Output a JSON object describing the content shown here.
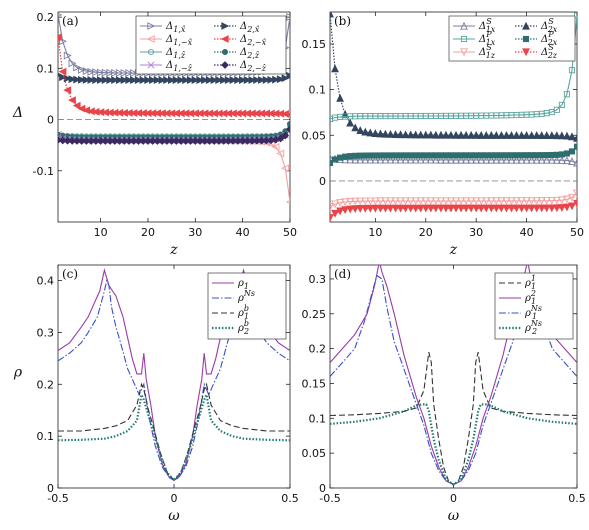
{
  "figure": {
    "colors": {
      "delta1_xhat": "#7b7fa0",
      "delta2_xhat": "#33455e",
      "delta1_zhat": "#5aa5a0",
      "delta2_zhat": "#2f6e6e",
      "delta1_mxhat": "#f2a0a0",
      "delta2_mxhat": "#e8444a",
      "delta1_mzhat": "#b07fd0",
      "delta2_mzhat": "#3a2a5e",
      "rho_main": "#9b3aa8",
      "rho_ns": "#3850c8",
      "rho_dash": "#333333",
      "rho_dot": "#1f7a74"
    }
  },
  "chart_data": [
    {
      "type": "line",
      "panel_label": "(a)",
      "xlabel": "z",
      "ylabel": "Δ",
      "xlim": [
        1,
        50
      ],
      "ylim": [
        -0.2,
        0.21
      ],
      "xticks": [
        10,
        20,
        30,
        40,
        50
      ],
      "yticks": [
        -0.1,
        0,
        0.1,
        0.2
      ],
      "ytick_labels": [
        "-0.1",
        "0",
        "0.1",
        "0.2"
      ],
      "legend_position": "top-right",
      "series": [
        {
          "name": "Δ1,x̂",
          "marker": "tri-right",
          "dash": "solid",
          "color_key": "delta1_xhat",
          "bulk": 0.09,
          "left_end": 0.2,
          "right_end": 0.195
        },
        {
          "name": "Δ2,x̂",
          "marker": "tri-right-filled",
          "dash": "dotted",
          "color_key": "delta2_xhat",
          "bulk": 0.077,
          "left_end": 0.087,
          "right_end": 0.085
        },
        {
          "name": "Δ1,−x̂",
          "marker": "tri-left",
          "dash": "solid",
          "color_key": "delta1_mxhat",
          "bulk": -0.04,
          "left_end": -0.03,
          "right_end": -0.155
        },
        {
          "name": "Δ2,−x̂",
          "marker": "tri-left-filled",
          "dash": "dotted",
          "color_key": "delta2_mxhat",
          "bulk": 0.012,
          "left_end": 0.155,
          "right_end": 0.01
        },
        {
          "name": "Δ1,ẑ",
          "marker": "circle",
          "dash": "solid",
          "color_key": "delta1_zhat",
          "bulk": -0.033,
          "left_end": -0.03,
          "right_end": -0.02
        },
        {
          "name": "Δ2,ẑ",
          "marker": "circle-filled",
          "dash": "dotted",
          "color_key": "delta2_zhat",
          "bulk": -0.035,
          "left_end": -0.03,
          "right_end": -0.01
        },
        {
          "name": "Δ1,−ẑ",
          "marker": "x",
          "dash": "solid",
          "color_key": "delta1_mzhat",
          "bulk": -0.04,
          "left_end": -0.035,
          "right_end": -0.02
        },
        {
          "name": "Δ2,−ẑ",
          "marker": "diamond-filled",
          "dash": "dotted",
          "color_key": "delta2_mzhat",
          "bulk": -0.042,
          "left_end": -0.04,
          "right_end": -0.02
        }
      ]
    },
    {
      "type": "line",
      "panel_label": "(b)",
      "xlabel": "z",
      "ylabel": "",
      "xlim": [
        1,
        50
      ],
      "ylim": [
        -0.045,
        0.185
      ],
      "xticks": [
        10,
        20,
        30,
        40,
        50
      ],
      "yticks": [
        0,
        0.05,
        0.1,
        0.15
      ],
      "ytick_labels": [
        "0",
        "0.05",
        "0.1",
        "0.15"
      ],
      "legend_position": "top-right",
      "series": [
        {
          "name": "ΔS1x",
          "marker": "tri-up",
          "dash": "solid",
          "color_key": "delta1_xhat",
          "bulk": 0.023,
          "left_end": 0.025,
          "right_end": 0.02
        },
        {
          "name": "ΔS2x",
          "marker": "tri-up-filled",
          "dash": "dotted",
          "color_key": "delta2_xhat",
          "bulk": 0.05,
          "left_end": 0.178,
          "right_end": 0.047
        },
        {
          "name": "ΔP1x",
          "marker": "square",
          "dash": "solid",
          "color_key": "delta1_zhat",
          "bulk": 0.071,
          "left_end": 0.068,
          "right_end": 0.176
        },
        {
          "name": "ΔP2x",
          "marker": "square-filled",
          "dash": "dotted",
          "color_key": "delta2_zhat",
          "bulk": 0.028,
          "left_end": 0.02,
          "right_end": 0.037
        },
        {
          "name": "ΔS1z",
          "marker": "tri-down",
          "dash": "solid",
          "color_key": "delta1_mxhat",
          "bulk": -0.022,
          "left_end": -0.028,
          "right_end": -0.014
        },
        {
          "name": "ΔS2z",
          "marker": "tri-down-filled",
          "dash": "dotted",
          "color_key": "delta2_mxhat",
          "bulk": -0.03,
          "left_end": -0.04,
          "right_end": -0.025
        }
      ]
    },
    {
      "type": "line",
      "panel_label": "(c)",
      "xlabel": "ω",
      "ylabel": "ρ",
      "xlim": [
        -0.5,
        0.5
      ],
      "ylim": [
        0,
        0.43
      ],
      "xticks": [
        -0.5,
        0,
        0.5
      ],
      "xtick_labels": [
        "-0.5",
        "0",
        "0.5"
      ],
      "yticks": [
        0,
        0.1,
        0.2,
        0.3,
        0.4
      ],
      "ytick_labels": [
        "0",
        "0.1",
        "0.2",
        "0.3",
        "0.4"
      ],
      "legend_position": "top-right",
      "series": [
        {
          "name": "ρ1",
          "dash": "solid",
          "color_key": "rho_main",
          "x": [
            0,
            0.02,
            0.05,
            0.08,
            0.1,
            0.12,
            0.13,
            0.14,
            0.16,
            0.18,
            0.2,
            0.22,
            0.25,
            0.28,
            0.3,
            0.32,
            0.34,
            0.37,
            0.4,
            0.45,
            0.5
          ],
          "y": [
            0.015,
            0.02,
            0.045,
            0.1,
            0.16,
            0.21,
            0.26,
            0.22,
            0.22,
            0.25,
            0.29,
            0.33,
            0.37,
            0.39,
            0.42,
            0.38,
            0.36,
            0.33,
            0.31,
            0.28,
            0.265
          ]
        },
        {
          "name": "ρNs",
          "dash": "dashdot",
          "color_key": "rho_ns",
          "x": [
            0,
            0.02,
            0.05,
            0.08,
            0.1,
            0.12,
            0.13,
            0.15,
            0.17,
            0.2,
            0.23,
            0.25,
            0.27,
            0.28,
            0.29,
            0.3,
            0.33,
            0.37,
            0.4,
            0.45,
            0.5
          ],
          "y": [
            0.015,
            0.02,
            0.04,
            0.08,
            0.12,
            0.17,
            0.2,
            0.18,
            0.2,
            0.23,
            0.28,
            0.31,
            0.35,
            0.39,
            0.4,
            0.38,
            0.33,
            0.3,
            0.28,
            0.26,
            0.245
          ]
        },
        {
          "name": "ρb1",
          "dash": "dashed",
          "color_key": "rho_dash",
          "x": [
            0,
            0.03,
            0.06,
            0.09,
            0.11,
            0.13,
            0.14,
            0.16,
            0.2,
            0.25,
            0.3,
            0.4,
            0.5
          ],
          "y": [
            0.015,
            0.03,
            0.07,
            0.12,
            0.15,
            0.19,
            0.2,
            0.16,
            0.13,
            0.12,
            0.115,
            0.11,
            0.11
          ]
        },
        {
          "name": "ρb2",
          "dash": "dotted-thick",
          "color_key": "rho_dot",
          "x": [
            0,
            0.03,
            0.06,
            0.09,
            0.11,
            0.13,
            0.14,
            0.16,
            0.2,
            0.25,
            0.3,
            0.4,
            0.5
          ],
          "y": [
            0.015,
            0.03,
            0.065,
            0.11,
            0.14,
            0.17,
            0.18,
            0.13,
            0.11,
            0.1,
            0.095,
            0.093,
            0.092
          ]
        }
      ]
    },
    {
      "type": "line",
      "panel_label": "(d)",
      "xlabel": "ω",
      "ylabel": "",
      "xlim": [
        -0.5,
        0.5
      ],
      "ylim": [
        0,
        0.32
      ],
      "xticks": [
        -0.5,
        0,
        0.5
      ],
      "xtick_labels": [
        "-0.5",
        "0",
        "0.5"
      ],
      "yticks": [
        0,
        0.05,
        0.1,
        0.15,
        0.2,
        0.25,
        0.3
      ],
      "ytick_labels": [
        "0",
        "0.05",
        "0.1",
        "0.15",
        "0.2",
        "0.25",
        "0.3"
      ],
      "legend_position": "top-right",
      "series": [
        {
          "name": "ρ11",
          "dash": "dashed",
          "color_key": "rho_dash",
          "x": [
            0,
            0.02,
            0.04,
            0.06,
            0.08,
            0.09,
            0.1,
            0.12,
            0.15,
            0.2,
            0.3,
            0.4,
            0.5
          ],
          "y": [
            0.005,
            0.01,
            0.03,
            0.07,
            0.12,
            0.18,
            0.195,
            0.14,
            0.115,
            0.11,
            0.107,
            0.105,
            0.104
          ]
        },
        {
          "name": "ρ12",
          "dash": "solid",
          "color_key": "rho_main",
          "x": [
            0,
            0.03,
            0.06,
            0.09,
            0.12,
            0.15,
            0.2,
            0.24,
            0.27,
            0.29,
            0.3,
            0.32,
            0.35,
            0.4,
            0.45,
            0.5
          ],
          "y": [
            0.005,
            0.01,
            0.03,
            0.06,
            0.1,
            0.13,
            0.19,
            0.25,
            0.29,
            0.31,
            0.325,
            0.29,
            0.25,
            0.22,
            0.2,
            0.18
          ]
        },
        {
          "name": "ρNs1",
          "dash": "dashdot",
          "color_key": "rho_ns",
          "x": [
            0,
            0.03,
            0.06,
            0.09,
            0.12,
            0.15,
            0.2,
            0.24,
            0.27,
            0.29,
            0.31,
            0.33,
            0.36,
            0.4,
            0.45,
            0.5
          ],
          "y": [
            0.005,
            0.01,
            0.025,
            0.05,
            0.09,
            0.12,
            0.17,
            0.21,
            0.26,
            0.3,
            0.305,
            0.28,
            0.24,
            0.2,
            0.18,
            0.16
          ]
        },
        {
          "name": "ρNs2",
          "dash": "dotted-thick",
          "color_key": "rho_dot",
          "x": [
            0,
            0.03,
            0.06,
            0.08,
            0.1,
            0.11,
            0.13,
            0.16,
            0.2,
            0.25,
            0.3,
            0.4,
            0.5
          ],
          "y": [
            0.005,
            0.012,
            0.04,
            0.07,
            0.11,
            0.12,
            0.12,
            0.117,
            0.11,
            0.105,
            0.1,
            0.095,
            0.092
          ]
        }
      ]
    }
  ]
}
